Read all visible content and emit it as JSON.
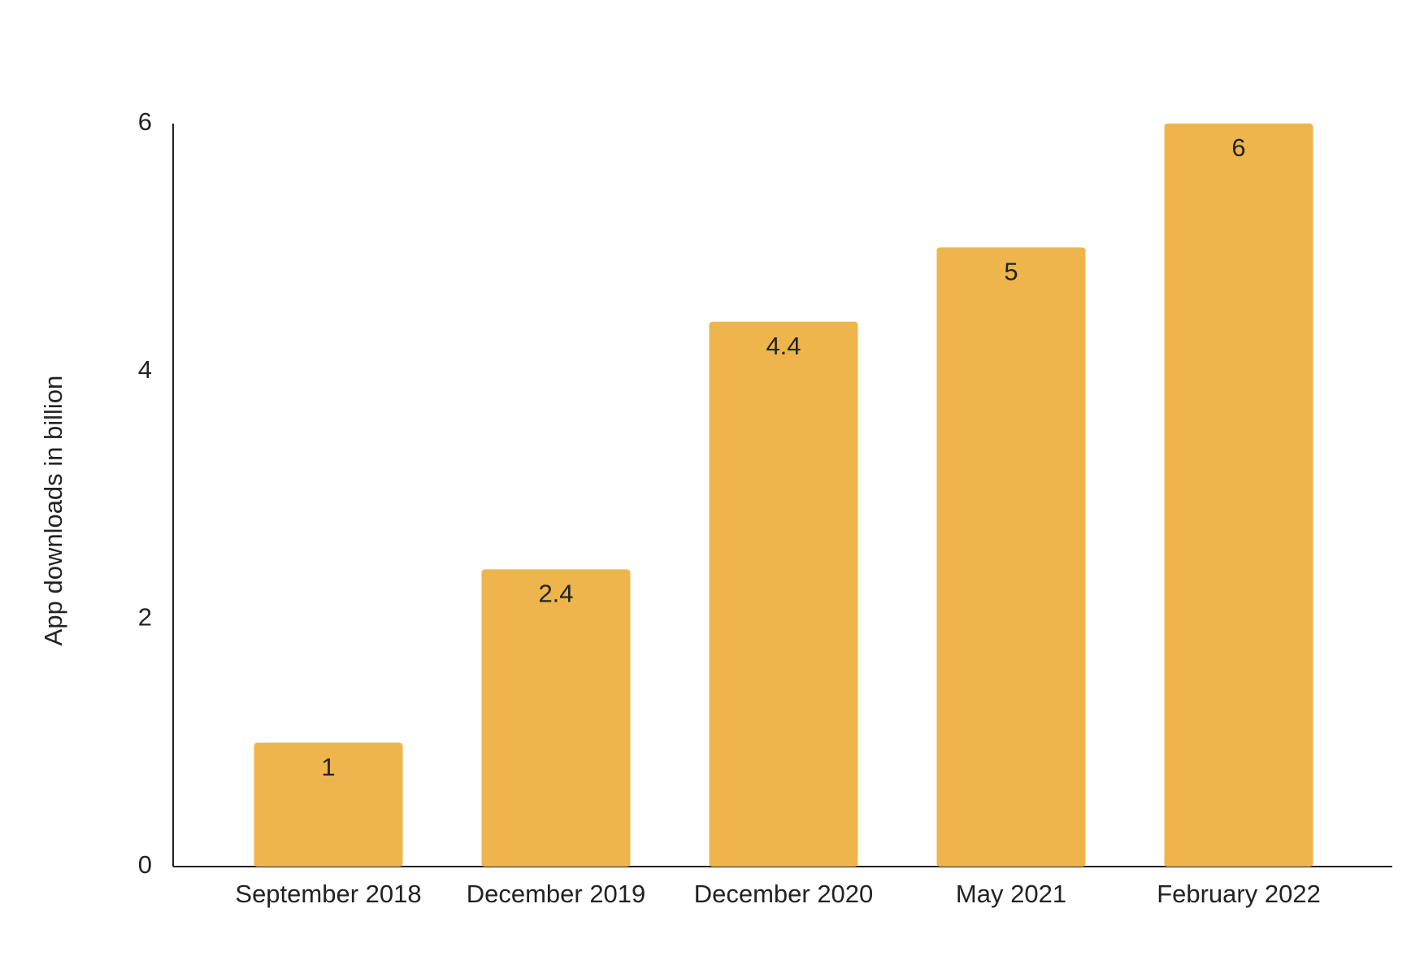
{
  "chart_data": {
    "type": "bar",
    "y_label": "App downloads in billion",
    "categories": [
      "September 2018",
      "December 2019",
      "December 2020",
      "May 2021",
      "February 2022"
    ],
    "values": [
      1,
      2.4,
      4.4,
      5,
      6
    ],
    "color": "#edb54b",
    "ylim": [
      0,
      6
    ],
    "yticks": [
      0,
      2,
      4,
      6
    ],
    "grid": false
  }
}
